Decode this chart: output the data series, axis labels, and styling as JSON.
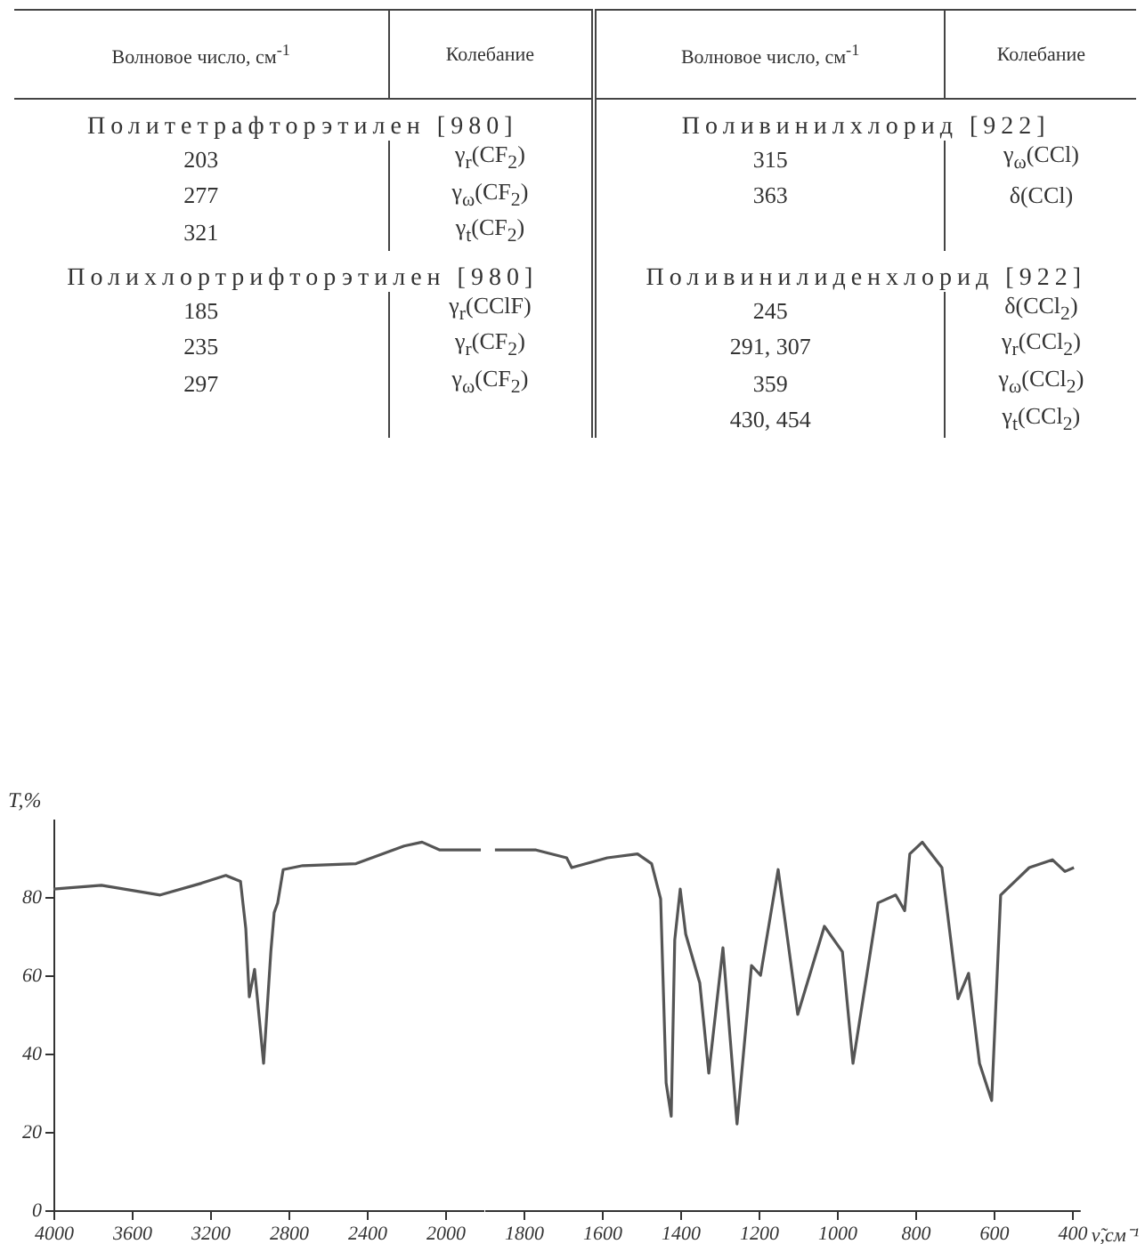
{
  "chart_data": [
    {
      "type": "other",
      "annotations": [
        "Волновое число, см$^{-1}$",
        "Колебание",
        "Волновое число, см$^{-1}$",
        "Колебание",
        "Политетрафторэтилен [980]",
        "Поливинилхлорид [922]",
        "203",
        "γ$_{r}$(CF$_{2}$)",
        "277",
        "γ$_{ω}$(CF$_{2}$)",
        "321",
        "γ$_{t}$(CF$_{2}$)",
        "315",
        "γ$_{ω}$(CCl)",
        "363",
        "δ(CCl)",
        "Полихлортрифторэтилен [980]",
        "Поливинилиденхлорид [922]",
        "185",
        "γ$_{r}$(CClF)",
        "235",
        "γ$_{r}$(CF$_{2}$)",
        "297",
        "γ$_{ω}$(CF$_{2}$)",
        "245",
        "δ(CCl$_{2}$)",
        "291, 307",
        "γ$_{r}$(CCl$_{2}$)",
        "359",
        "γ$_{ω}$(CCl$_{2}$)",
        "430, 454",
        "γ$_{t}$(CCl$_{2}$)"
      ]
    },
    {
      "type": "line",
      "ylabel": "T,%",
      "xlim": [
        4000,
        1800
      ],
      "xticks": [
        4000,
        3600,
        3200,
        2800,
        2400,
        2000
      ],
      "ylim": [
        0,
        100
      ],
      "yticks": [
        0,
        20,
        40,
        60,
        80
      ],
      "series": [
        {
          "color": "#555555",
          "x": [
            4000,
            3755,
            3455,
            3245,
            3120,
            3045,
            3018,
            3000,
            2973,
            2927,
            2890,
            2873,
            2855,
            2827,
            2727,
            2455,
            2210,
            2118,
            2027,
            1973,
            1845,
            1818
          ],
          "values": [
            82,
            83,
            80.5,
            83.5,
            85.5,
            84,
            72,
            54.5,
            61.5,
            37.5,
            66,
            76,
            78.5,
            87,
            88,
            88.5,
            93,
            94,
            92,
            92,
            92,
            92
          ]
        }
      ]
    },
    {
      "type": "line",
      "xlabel": "ν̃,см⁻¹",
      "xlim": [
        1900,
        380
      ],
      "xticks": [
        1800,
        1600,
        1400,
        1200,
        1000,
        800,
        600,
        400
      ],
      "ylim": [
        0,
        100
      ],
      "yticks": [
        0,
        20,
        40,
        60,
        80
      ],
      "tick_labels": "x",
      "series": [
        {
          "color": "#555555",
          "x": [
            1873,
            1768,
            1690,
            1677,
            1586,
            1509,
            1473,
            1450,
            1436,
            1423,
            1414,
            1400,
            1386,
            1350,
            1327,
            1291,
            1255,
            1218,
            1195,
            1150,
            1100,
            1032,
            986,
            959,
            895,
            850,
            827,
            814,
            782,
            732,
            691,
            664,
            636,
            605,
            582,
            509,
            450,
            418,
            395
          ],
          "values": [
            92,
            92,
            90,
            87.5,
            90,
            91,
            88.5,
            79.5,
            32.5,
            24,
            69,
            82,
            70.5,
            58,
            35,
            67,
            22,
            62.5,
            60,
            87,
            50,
            72.5,
            66,
            37.5,
            78.5,
            80.5,
            76.5,
            91,
            94,
            87.5,
            54,
            60.5,
            37.5,
            28,
            80.5,
            87.5,
            89.5,
            86.5,
            87.5
          ]
        }
      ]
    }
  ]
}
